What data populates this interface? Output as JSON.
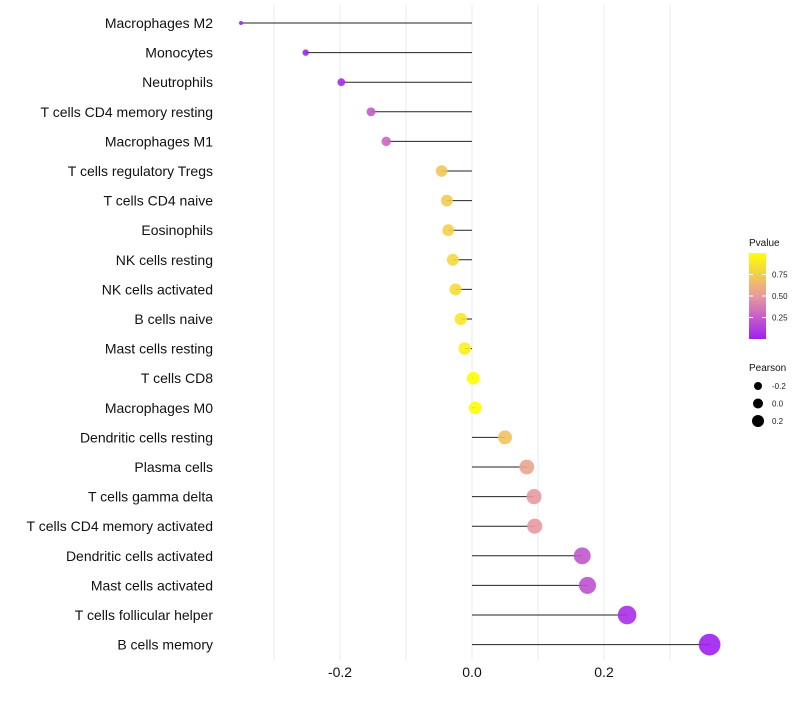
{
  "chart_data": {
    "type": "lollipop",
    "title": "",
    "xlabel": "",
    "ylabel": "",
    "xlim": [
      -0.35,
      0.36
    ],
    "xticks": [
      -0.2,
      0.0,
      0.2
    ],
    "xtick_labels": [
      "-0.2",
      "0.0",
      "0.2"
    ],
    "grid": true,
    "categories": [
      "Macrophages M2",
      "Monocytes",
      "Neutrophils",
      "T cells CD4 memory resting",
      "Macrophages M1",
      "T cells regulatory  Tregs",
      "T cells CD4 naive",
      "Eosinophils",
      "NK cells resting",
      "NK cells activated",
      "B cells naive",
      "Mast cells resting",
      "T cells CD8",
      "Macrophages M0",
      "Dendritic cells resting",
      "Plasma cells",
      "T cells gamma delta",
      "T cells CD4 memory activated",
      "Dendritic cells activated",
      "Mast cells activated",
      "T cells follicular helper",
      "B cells memory"
    ],
    "pearson": [
      -0.35,
      -0.252,
      -0.198,
      -0.153,
      -0.13,
      -0.046,
      -0.038,
      -0.036,
      -0.029,
      -0.025,
      -0.017,
      -0.011,
      0.002,
      0.005,
      0.05,
      0.083,
      0.094,
      0.095,
      0.167,
      0.175,
      0.235,
      0.36
    ],
    "pvalue": [
      0.0,
      0.02,
      0.05,
      0.24,
      0.3,
      0.72,
      0.74,
      0.76,
      0.8,
      0.82,
      0.88,
      0.92,
      0.99,
      0.98,
      0.7,
      0.55,
      0.5,
      0.5,
      0.22,
      0.2,
      0.06,
      0.0
    ],
    "legend": {
      "color": {
        "title": "Pvalue",
        "ticks": [
          0.25,
          0.5,
          0.75
        ],
        "tick_labels": [
          "0.25",
          "0.50",
          "0.75"
        ],
        "low_color": "#A020F0",
        "mid_color": "#E89AA0",
        "high_color": "#FFFF00",
        "range": [
          0,
          1
        ]
      },
      "size": {
        "title": "Pearson",
        "values": [
          -0.2,
          0.0,
          0.2
        ],
        "labels": [
          "-0.2",
          "0.0",
          "0.2"
        ]
      },
      "placement": "right"
    }
  }
}
